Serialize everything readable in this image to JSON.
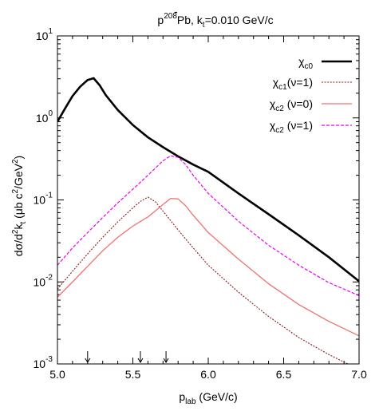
{
  "chart_data": {
    "type": "line",
    "title": {
      "main": "p",
      "bar": "-",
      "sup": "208",
      "rest": "Pb, k",
      "sub": "t",
      "tail": "=0.010 GeV/c"
    },
    "xlabel": {
      "main": "p",
      "sub": "lab",
      "rest": " (GeV/c)"
    },
    "ylabel": {
      "a": "dσ/d",
      "a_sup": "2",
      "b": "k",
      "b_sub": "t",
      "c": " (μb c",
      "c_sup": "2",
      "d": "/GeV",
      "d_sup": "2",
      "e": ")"
    },
    "xlim": [
      5.0,
      7.0
    ],
    "ylim": [
      0.001,
      10
    ],
    "log_y": true,
    "x_ticks": [
      5.0,
      5.5,
      6.0,
      6.5,
      7.0
    ],
    "x_tick_labels": [
      "5.0",
      "5.5",
      "6.0",
      "6.5",
      "7.0"
    ],
    "y_ticks": [
      {
        "value": 0.001,
        "base": "10",
        "exp": "-3"
      },
      {
        "value": 0.01,
        "base": "10",
        "exp": "-2"
      },
      {
        "value": 0.1,
        "base": "10",
        "exp": "-1"
      },
      {
        "value": 1,
        "base": "10",
        "exp": "0"
      },
      {
        "value": 10,
        "base": "10",
        "exp": "1"
      }
    ],
    "threshold_arrows_x": [
      5.2,
      5.55,
      5.72
    ],
    "grid": false,
    "legend_position": "top-right",
    "series": [
      {
        "name": {
          "chi": "χ",
          "sub": "c0",
          "after": ""
        },
        "color": "#000000",
        "width": 2.6,
        "dash": "",
        "x": [
          5.0,
          5.05,
          5.1,
          5.15,
          5.2,
          5.24,
          5.28,
          5.32,
          5.4,
          5.5,
          5.6,
          5.7,
          5.8,
          5.9,
          6.0,
          6.2,
          6.4,
          6.6,
          6.8,
          7.0
        ],
        "y": [
          0.9,
          1.3,
          1.85,
          2.4,
          2.9,
          3.05,
          2.5,
          1.9,
          1.25,
          0.82,
          0.58,
          0.44,
          0.34,
          0.27,
          0.22,
          0.12,
          0.067,
          0.037,
          0.02,
          0.0102
        ]
      },
      {
        "name": {
          "chi": "χ",
          "sub": "c1",
          "after": "(ν=1)"
        },
        "color": "#8b1a1a",
        "width": 1.1,
        "dash": "2,1.6",
        "x": [
          5.0,
          5.1,
          5.2,
          5.3,
          5.4,
          5.5,
          5.55,
          5.6,
          5.65,
          5.7,
          5.8,
          5.9,
          6.0,
          6.2,
          6.4,
          6.6,
          6.8,
          6.95
        ],
        "y": [
          0.0082,
          0.0135,
          0.022,
          0.035,
          0.054,
          0.08,
          0.096,
          0.108,
          0.095,
          0.073,
          0.043,
          0.026,
          0.016,
          0.0075,
          0.0038,
          0.0021,
          0.0013,
          0.00095
        ]
      },
      {
        "name": {
          "chi": "χ",
          "sub": "c2",
          "after": " (ν=0)"
        },
        "color": "#f07070",
        "width": 1.3,
        "dash": "",
        "x": [
          5.0,
          5.1,
          5.2,
          5.3,
          5.4,
          5.5,
          5.6,
          5.7,
          5.75,
          5.8,
          5.85,
          5.9,
          6.0,
          6.2,
          6.4,
          6.6,
          6.8,
          7.0
        ],
        "y": [
          0.0065,
          0.01,
          0.0155,
          0.024,
          0.035,
          0.048,
          0.062,
          0.088,
          0.104,
          0.103,
          0.085,
          0.065,
          0.04,
          0.019,
          0.0095,
          0.0053,
          0.0033,
          0.0022
        ]
      },
      {
        "name": {
          "chi": "χ",
          "sub": "c2",
          "after": " (ν=1)"
        },
        "color": "#ee00ee",
        "width": 1.2,
        "dash": "4,2",
        "x": [
          5.0,
          5.1,
          5.2,
          5.3,
          5.4,
          5.5,
          5.6,
          5.7,
          5.75,
          5.8,
          5.85,
          5.9,
          6.0,
          6.2,
          6.4,
          6.6,
          6.8,
          7.0
        ],
        "y": [
          0.016,
          0.026,
          0.04,
          0.061,
          0.092,
          0.135,
          0.2,
          0.3,
          0.345,
          0.33,
          0.27,
          0.2,
          0.12,
          0.055,
          0.028,
          0.016,
          0.0098,
          0.0068
        ]
      }
    ]
  }
}
